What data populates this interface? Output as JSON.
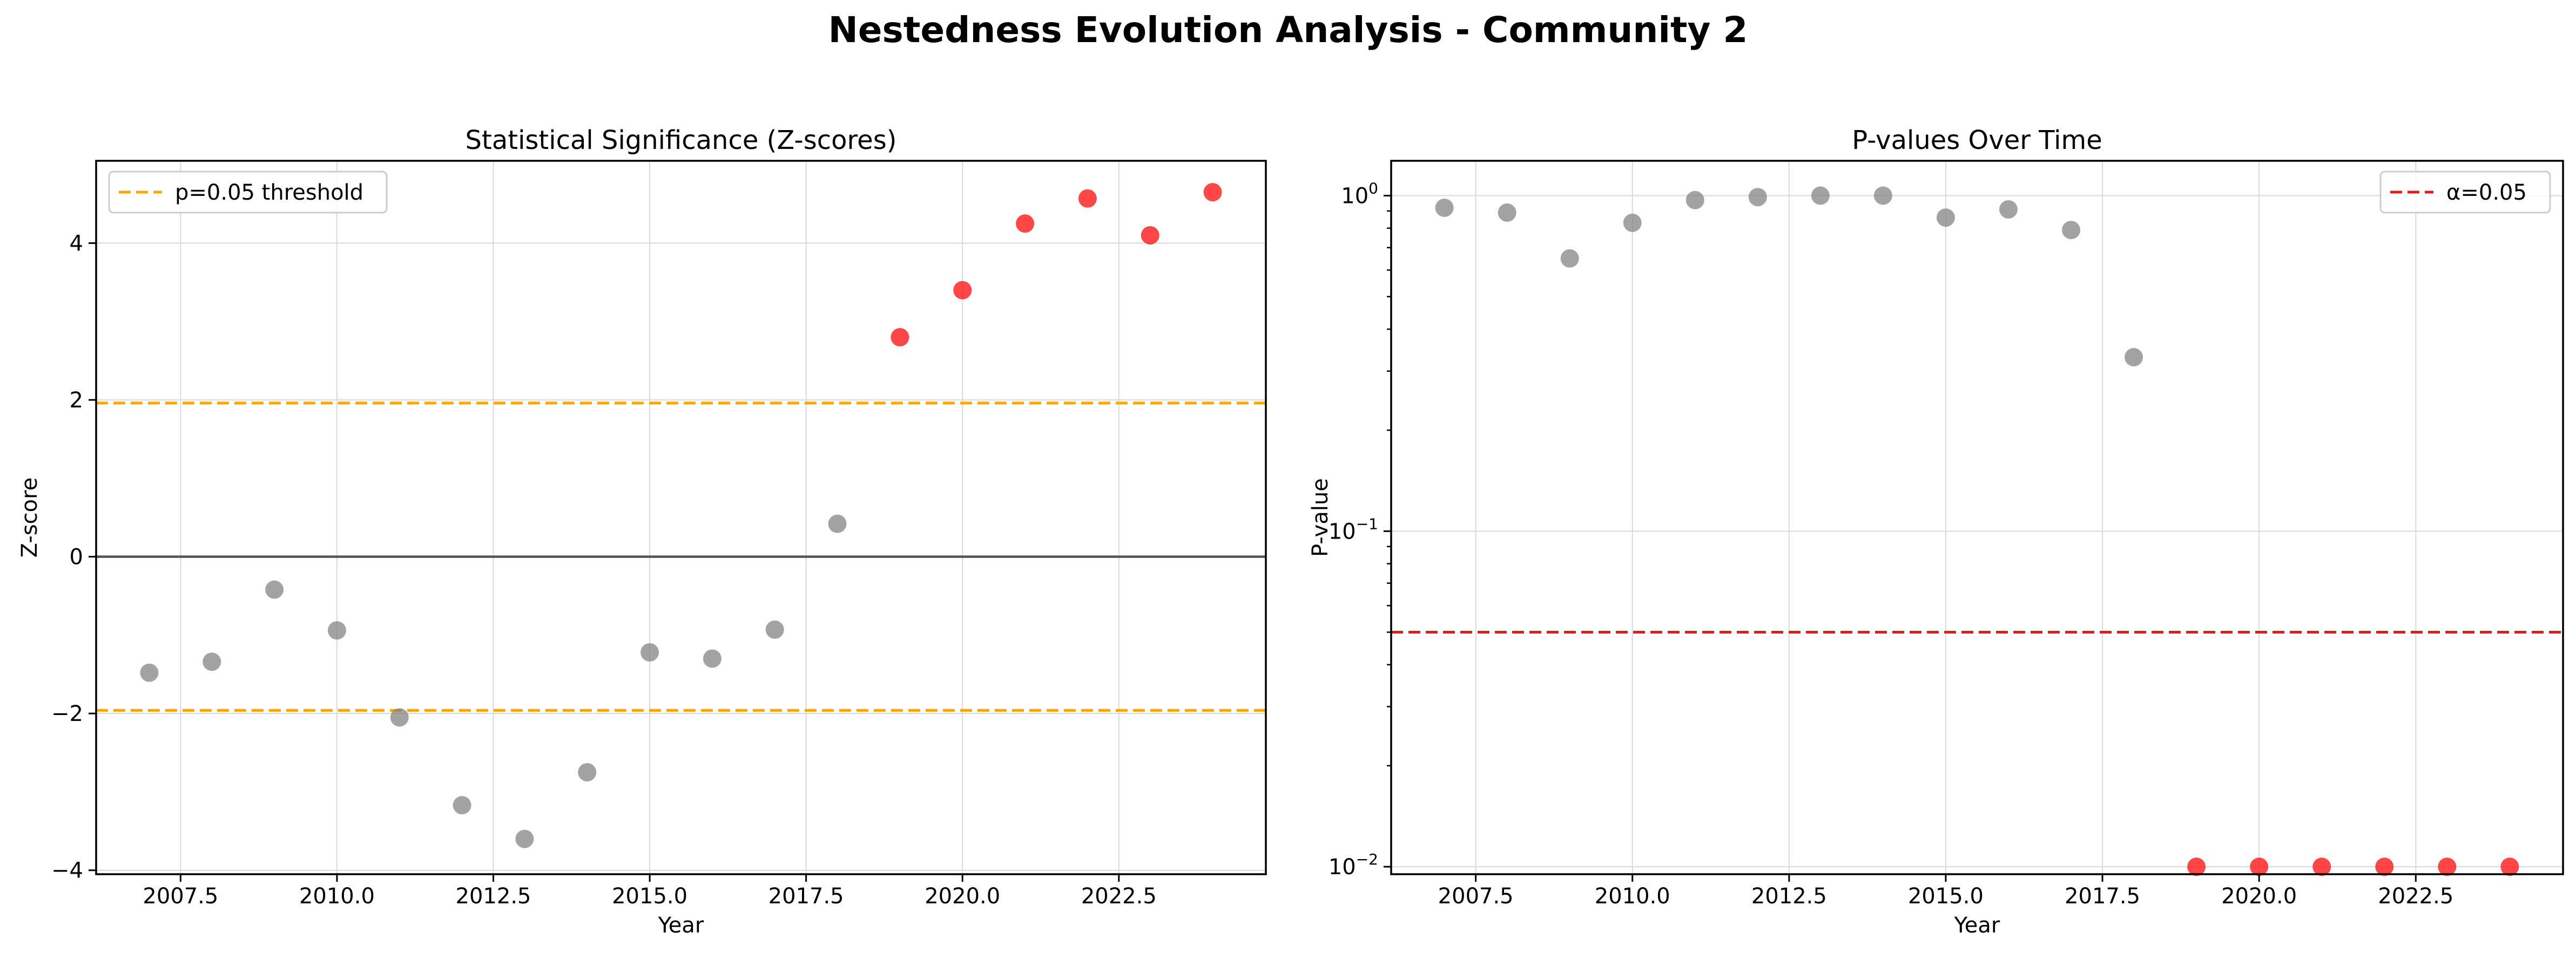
{
  "suptitle": "Nestedness Evolution Analysis - Community 2",
  "colors": {
    "significant": "#ff0000",
    "not_significant": "#808080",
    "threshold_left": "#ffa500",
    "threshold_right": "#e31a1c",
    "zero_line": "#555555",
    "grid": "#d9d9d9"
  },
  "chart_data": [
    {
      "type": "scatter",
      "title": "Statistical Significance (Z-scores)",
      "xlabel": "Year",
      "ylabel": "Z-score",
      "xlim": [
        2006.15,
        2024.85
      ],
      "ylim": [
        -4.05,
        5.05
      ],
      "yscale": "linear",
      "grid": true,
      "xticks": [
        2007.5,
        2010.0,
        2012.5,
        2015.0,
        2017.5,
        2020.0,
        2022.5
      ],
      "xtick_labels": [
        "2007.5",
        "2010.0",
        "2012.5",
        "2015.0",
        "2017.5",
        "2020.0",
        "2022.5"
      ],
      "yticks": [
        -4,
        -2,
        0,
        2,
        4
      ],
      "ytick_labels": [
        "−4",
        "−2",
        "0",
        "2",
        "4"
      ],
      "reference_lines": [
        {
          "y": 1.96,
          "style": "dashed",
          "color": "#ffa500",
          "legend": "p=0.05 threshold"
        },
        {
          "y": -1.96,
          "style": "dashed",
          "color": "#ffa500"
        },
        {
          "y": 0,
          "style": "solid",
          "color": "#555555"
        }
      ],
      "legend_position": "upper left",
      "points": [
        {
          "x": 2007,
          "y": -1.48,
          "significant": false
        },
        {
          "x": 2008,
          "y": -1.34,
          "significant": false
        },
        {
          "x": 2009,
          "y": -0.42,
          "significant": false
        },
        {
          "x": 2010,
          "y": -0.94,
          "significant": false
        },
        {
          "x": 2011,
          "y": -2.05,
          "significant": false
        },
        {
          "x": 2012,
          "y": -3.17,
          "significant": false
        },
        {
          "x": 2013,
          "y": -3.6,
          "significant": false
        },
        {
          "x": 2014,
          "y": -2.75,
          "significant": false
        },
        {
          "x": 2015,
          "y": -1.22,
          "significant": false
        },
        {
          "x": 2016,
          "y": -1.3,
          "significant": false
        },
        {
          "x": 2017,
          "y": -0.93,
          "significant": false
        },
        {
          "x": 2018,
          "y": 0.42,
          "significant": false
        },
        {
          "x": 2019,
          "y": 2.8,
          "significant": true
        },
        {
          "x": 2020,
          "y": 3.4,
          "significant": true
        },
        {
          "x": 2021,
          "y": 4.25,
          "significant": true
        },
        {
          "x": 2022,
          "y": 4.57,
          "significant": true
        },
        {
          "x": 2023,
          "y": 4.1,
          "significant": true
        },
        {
          "x": 2024,
          "y": 4.65,
          "significant": true
        }
      ]
    },
    {
      "type": "scatter",
      "title": "P-values Over Time",
      "xlabel": "Year",
      "ylabel": "P-value",
      "xlim": [
        2006.15,
        2024.85
      ],
      "ylim": [
        0.0095,
        1.27
      ],
      "yscale": "log",
      "grid": true,
      "xticks": [
        2007.5,
        2010.0,
        2012.5,
        2015.0,
        2017.5,
        2020.0,
        2022.5
      ],
      "xtick_labels": [
        "2007.5",
        "2010.0",
        "2012.5",
        "2015.0",
        "2017.5",
        "2020.0",
        "2022.5"
      ],
      "yticks": [
        0.01,
        0.1,
        1
      ],
      "ytick_labels": [
        [
          "10",
          "−2"
        ],
        [
          "10",
          "−1"
        ],
        [
          "10",
          "0"
        ]
      ],
      "reference_lines": [
        {
          "y": 0.05,
          "style": "dashed",
          "color": "#e31a1c",
          "legend": "α=0.05"
        }
      ],
      "legend_position": "upper right",
      "points": [
        {
          "x": 2007,
          "y": 0.92,
          "significant": false
        },
        {
          "x": 2008,
          "y": 0.89,
          "significant": false
        },
        {
          "x": 2009,
          "y": 0.65,
          "significant": false
        },
        {
          "x": 2010,
          "y": 0.83,
          "significant": false
        },
        {
          "x": 2011,
          "y": 0.97,
          "significant": false
        },
        {
          "x": 2012,
          "y": 0.99,
          "significant": false
        },
        {
          "x": 2013,
          "y": 1.0,
          "significant": false
        },
        {
          "x": 2014,
          "y": 1.0,
          "significant": false
        },
        {
          "x": 2015,
          "y": 0.86,
          "significant": false
        },
        {
          "x": 2016,
          "y": 0.91,
          "significant": false
        },
        {
          "x": 2017,
          "y": 0.79,
          "significant": false
        },
        {
          "x": 2018,
          "y": 0.33,
          "significant": false
        },
        {
          "x": 2019,
          "y": 0.01,
          "significant": true
        },
        {
          "x": 2020,
          "y": 0.01,
          "significant": true
        },
        {
          "x": 2021,
          "y": 0.01,
          "significant": true
        },
        {
          "x": 2022,
          "y": 0.01,
          "significant": true
        },
        {
          "x": 2023,
          "y": 0.01,
          "significant": true
        },
        {
          "x": 2024,
          "y": 0.01,
          "significant": true
        }
      ]
    }
  ]
}
